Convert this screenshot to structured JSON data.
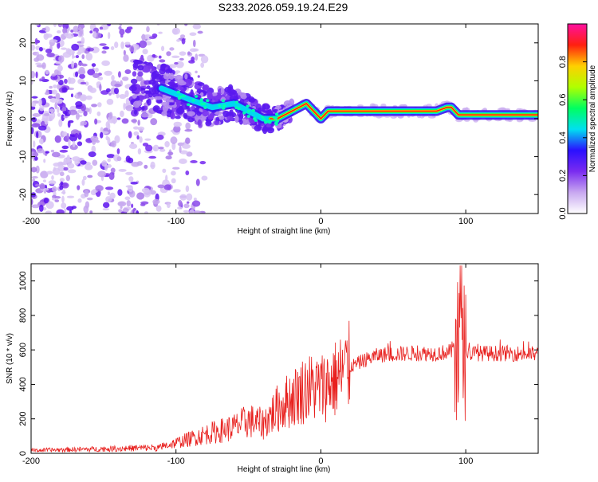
{
  "title": "S233.2026.059.19.24.E29",
  "chart_data": [
    {
      "type": "heatmap",
      "xlabel": "Height of straight line (km)",
      "ylabel": "Frequency (Hz)",
      "xlim": [
        -200,
        150
      ],
      "ylim": [
        -25,
        25
      ],
      "x_ticks": [
        -200,
        -100,
        0,
        100
      ],
      "y_ticks": [
        -20,
        -10,
        0,
        10,
        20
      ],
      "colorbar": {
        "label": "Normalized spectral amplitude",
        "range": [
          0,
          1
        ],
        "ticks": [
          0.0,
          0.2,
          0.4,
          0.6,
          0.8
        ],
        "tick_labels": [
          "0.0",
          "0.2",
          "0.4",
          "0.6",
          "0.8"
        ],
        "colors": [
          "#ffffff",
          "#c8a8f0",
          "#7a2cf0",
          "#2a10ff",
          "#00e0f0",
          "#00ff60",
          "#b0ff00",
          "#ffd000",
          "#ff2010",
          "#ff10a0"
        ]
      },
      "ridge": {
        "description_points_x": [
          -110,
          -90,
          -75,
          -60,
          -50,
          -40,
          -30,
          -20,
          -15,
          -10,
          -5,
          0,
          5,
          20,
          50,
          80,
          87,
          90,
          95,
          100,
          110,
          125,
          150
        ],
        "description_points_freq": [
          8,
          5,
          3,
          4,
          2,
          0,
          0,
          2,
          3,
          4,
          2,
          0,
          2,
          2,
          2,
          2,
          3,
          3,
          1,
          1,
          1,
          1,
          1
        ]
      }
    },
    {
      "type": "line",
      "xlabel": "Height of straight line (km)",
      "ylabel": "SNR (10 * v/v)",
      "xlim": [
        -200,
        150
      ],
      "ylim": [
        0,
        1100
      ],
      "x_ticks": [
        -200,
        -100,
        0,
        100
      ],
      "y_ticks": [
        0,
        200,
        400,
        600,
        800,
        1000
      ],
      "series_color": "#e8201e",
      "envelope_x": [
        -200,
        -150,
        -110,
        -100,
        -80,
        -60,
        -50,
        -40,
        -30,
        -20,
        -10,
        0,
        10,
        20,
        30,
        40,
        60,
        80,
        90,
        95,
        97,
        100,
        110,
        130,
        150
      ],
      "envelope_y": [
        20,
        30,
        40,
        60,
        110,
        150,
        190,
        170,
        260,
        320,
        380,
        380,
        430,
        500,
        540,
        570,
        580,
        580,
        590,
        700,
        650,
        580,
        580,
        580,
        575
      ]
    }
  ]
}
